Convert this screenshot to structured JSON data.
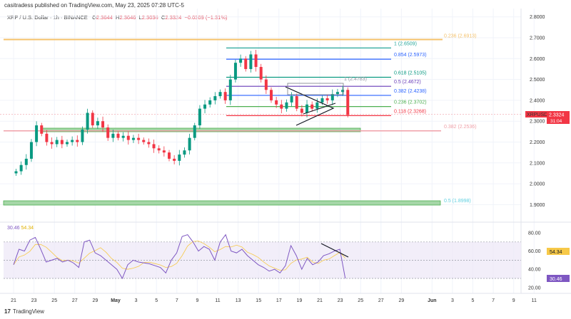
{
  "header": {
    "publisher": "casitradess published on TradingView.com, May 23, 2025 07:28 UTC-5",
    "symbol_desc": "XRP / U.S. Dollar · 1h · BINANCE",
    "open_label": "O",
    "open": "2.3644",
    "high_label": "H",
    "high": "2.3646",
    "low_label": "L",
    "low": "2.3036",
    "close_label": "C",
    "close": "2.3324",
    "change": "−0.0309 (−1.31%)"
  },
  "price_badge": {
    "symbol": "XRPUSD",
    "price": "2.3324",
    "countdown": "31:04"
  },
  "fib_levels": [
    {
      "label": "1 (2.6509)",
      "value": 2.6509,
      "color": "#26a69a"
    },
    {
      "label": "0.854 (2.5973)",
      "value": 2.5973,
      "color": "#2962ff"
    },
    {
      "label": "0.618 (2.5105)",
      "value": 2.5105,
      "color": "#089981"
    },
    {
      "label": "0.5 (2.4672)",
      "value": 2.4672,
      "color": "#673ab7"
    },
    {
      "label": "0.382 (2.4238)",
      "value": 2.4238,
      "color": "#2962ff"
    },
    {
      "label": "0.236 (2.3702)",
      "value": 2.3702,
      "color": "#4caf50"
    },
    {
      "label": "0.118 (2.3268)",
      "value": 2.3268,
      "color": "#f23645"
    }
  ],
  "macro_levels": [
    {
      "label": "0.236 (2.6913)",
      "value": 2.6913,
      "color": "#f5c26b"
    },
    {
      "label": "0.382 (2.2536)",
      "value": 2.2536,
      "color": "#f0a0a8"
    },
    {
      "label": "0.5 (1.8998)",
      "value": 1.8998,
      "color": "#5fd0e0"
    }
  ],
  "box_label": "1 (2.4783)",
  "rsi": {
    "value": "30.46",
    "ma": "54.34",
    "axis": [
      "80.00",
      "60.00",
      "40.00",
      "20.00"
    ]
  },
  "footer": {
    "logo": "17",
    "brand": "TradingView"
  },
  "chart_data": {
    "type": "candlestick",
    "title": "XRP / U.S. Dollar · 1h · BINANCE",
    "y_ticks": [
      2.8,
      2.7,
      2.6,
      2.5,
      2.4,
      2.3,
      2.2,
      2.1,
      2.0,
      1.9
    ],
    "y_tick_labels": [
      "2.8000",
      "2.7000",
      "2.6000",
      "2.5000",
      "2.4000",
      "2.3000",
      "2.2000",
      "2.1000",
      "2.0000",
      "1.9000"
    ],
    "ylim": [
      1.85,
      2.82
    ],
    "x_ticks": [
      {
        "day": 0,
        "label": "21"
      },
      {
        "day": 2,
        "label": "23"
      },
      {
        "day": 4,
        "label": "25"
      },
      {
        "day": 6,
        "label": "27"
      },
      {
        "day": 8,
        "label": "29"
      },
      {
        "day": 10,
        "label": "May"
      },
      {
        "day": 12,
        "label": "3"
      },
      {
        "day": 14,
        "label": "5"
      },
      {
        "day": 16,
        "label": "7"
      },
      {
        "day": 18,
        "label": "9"
      },
      {
        "day": 20,
        "label": "11"
      },
      {
        "day": 22,
        "label": "13"
      },
      {
        "day": 24,
        "label": "15"
      },
      {
        "day": 26,
        "label": "17"
      },
      {
        "day": 28,
        "label": "19"
      },
      {
        "day": 30,
        "label": "21"
      },
      {
        "day": 32,
        "label": "23"
      },
      {
        "day": 34,
        "label": "25"
      },
      {
        "day": 36,
        "label": "27"
      },
      {
        "day": 38,
        "label": "29"
      },
      {
        "day": 41,
        "label": "Jun"
      },
      {
        "day": 43,
        "label": "3"
      },
      {
        "day": 45,
        "label": "5"
      },
      {
        "day": 47,
        "label": "7"
      },
      {
        "day": 49,
        "label": "9"
      },
      {
        "day": 51,
        "label": "11"
      }
    ],
    "x_unit": "days since Apr 21 (12h steps)",
    "closes": [
      2.06,
      2.09,
      2.12,
      2.2,
      2.28,
      2.24,
      2.2,
      2.19,
      2.21,
      2.19,
      2.2,
      2.21,
      2.2,
      2.26,
      2.34,
      2.28,
      2.3,
      2.27,
      2.22,
      2.24,
      2.22,
      2.23,
      2.21,
      2.22,
      2.21,
      2.2,
      2.19,
      2.17,
      2.16,
      2.15,
      2.12,
      2.11,
      2.14,
      2.16,
      2.22,
      2.28,
      2.36,
      2.38,
      2.4,
      2.42,
      2.44,
      2.4,
      2.5,
      2.58,
      2.6,
      2.55,
      2.62,
      2.56,
      2.5,
      2.45,
      2.4,
      2.38,
      2.36,
      2.39,
      2.42,
      2.36,
      2.34,
      2.38,
      2.36,
      2.39,
      2.41,
      2.4,
      2.43,
      2.44,
      2.45,
      2.33
    ],
    "rsi_series": [
      45,
      62,
      60,
      72,
      75,
      62,
      48,
      50,
      52,
      48,
      50,
      47,
      42,
      70,
      72,
      58,
      55,
      50,
      45,
      40,
      30,
      45,
      50,
      48,
      47,
      46,
      44,
      42,
      36,
      50,
      58,
      76,
      78,
      70,
      60,
      65,
      62,
      50,
      70,
      78,
      60,
      58,
      62,
      55,
      50,
      45,
      42,
      38,
      40,
      36,
      44,
      66,
      55,
      40,
      52,
      45,
      48,
      55,
      57,
      60,
      62,
      30
    ],
    "rsi_ylim": [
      15,
      88
    ],
    "rsi_bands": [
      70,
      50,
      30
    ]
  }
}
